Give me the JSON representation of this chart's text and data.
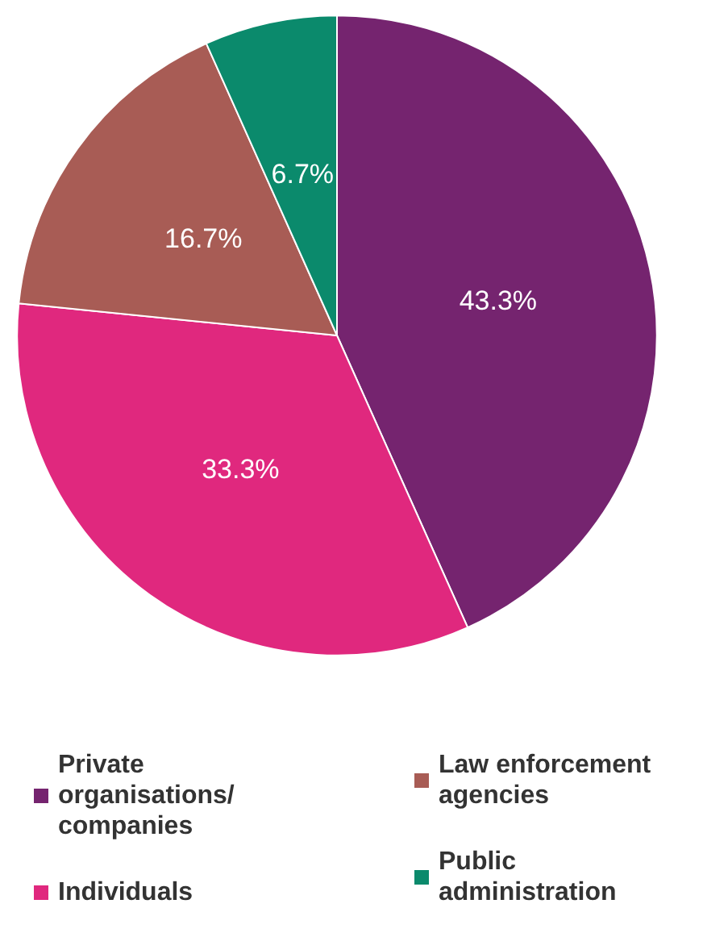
{
  "chart_data": {
    "type": "pie",
    "categories": [
      "Private organisations/ companies",
      "Individuals",
      "Law enforcement agencies",
      "Public administration"
    ],
    "values": [
      43.3,
      33.3,
      16.7,
      6.7
    ],
    "value_labels": [
      "43.3%",
      "33.3%",
      "16.7%",
      "6.7%"
    ],
    "colors": [
      "#75246f",
      "#e0287e",
      "#a85c55",
      "#0b8a6c"
    ],
    "legend": "bottom"
  }
}
